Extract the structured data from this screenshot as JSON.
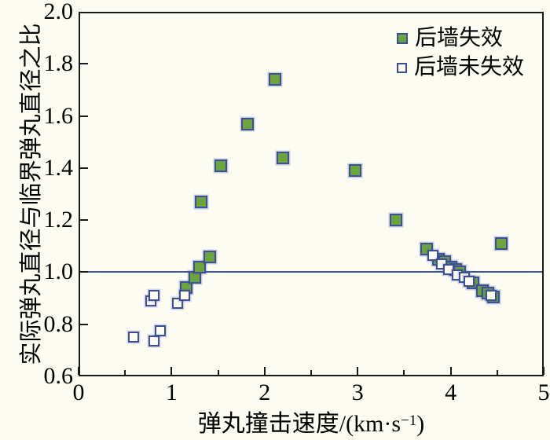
{
  "colors": {
    "background": "#FDFCF2",
    "frame": "#1A1A1A",
    "marker_green": "#6BA53B",
    "marker_border": "#3D4E9B",
    "reference_line": "#4053A3",
    "text": "#000000"
  },
  "chart_data": {
    "type": "scatter",
    "title": "",
    "xlabel_parts": {
      "prefix": "弹丸撞击速度/(km·s",
      "sup": "−1",
      "suffix": ")"
    },
    "ylabel": "实际弹丸直径与临界弹丸直径之比",
    "xlim": [
      0,
      5
    ],
    "ylim": [
      0.6,
      2.0
    ],
    "x_major_ticks": [
      0,
      1,
      2,
      3,
      4,
      5
    ],
    "x_tick_labels": [
      "0",
      "1",
      "2",
      "3",
      "4",
      "5"
    ],
    "x_minor_ticks": [
      0.5,
      1.5,
      2.5,
      3.5,
      4.5
    ],
    "y_major_ticks": [
      0.6,
      0.8,
      1.0,
      1.2,
      1.4,
      1.6,
      1.8,
      2.0
    ],
    "y_tick_labels": [
      "0.6",
      "0.8",
      "1.0",
      "1.2",
      "1.4",
      "1.6",
      "1.8",
      "2.0"
    ],
    "reference_line_y": 1.0,
    "grid": false,
    "legend_position": "top-right",
    "series": [
      {
        "name": "后墙失效",
        "marker": "filled-square",
        "fill": "#6BA53B",
        "border": "#3D4E9B",
        "points": [
          [
            1.16,
            0.94
          ],
          [
            1.25,
            0.98
          ],
          [
            1.3,
            1.02
          ],
          [
            1.32,
            1.27
          ],
          [
            1.41,
            1.06
          ],
          [
            1.53,
            1.41
          ],
          [
            1.82,
            1.57
          ],
          [
            2.11,
            1.74
          ],
          [
            2.2,
            1.44
          ],
          [
            2.97,
            1.39
          ],
          [
            3.41,
            1.2
          ],
          [
            3.74,
            1.09
          ],
          [
            3.87,
            1.05
          ],
          [
            3.94,
            1.04
          ],
          [
            4.0,
            1.02
          ],
          [
            4.05,
            1.01
          ],
          [
            4.1,
            1.0
          ],
          [
            4.24,
            0.96
          ],
          [
            4.34,
            0.93
          ],
          [
            4.4,
            0.92
          ],
          [
            4.46,
            0.905
          ],
          [
            4.54,
            1.11
          ]
        ]
      },
      {
        "name": "后墙未失效",
        "marker": "open-square",
        "fill": "none",
        "border": "#3D4E9B",
        "points": [
          [
            0.59,
            0.75
          ],
          [
            0.78,
            0.89
          ],
          [
            0.81,
            0.91
          ],
          [
            0.81,
            0.735
          ],
          [
            0.88,
            0.775
          ],
          [
            1.06,
            0.88
          ],
          [
            1.14,
            0.91
          ],
          [
            3.81,
            1.065
          ],
          [
            3.9,
            1.03
          ],
          [
            3.98,
            1.01
          ],
          [
            4.07,
            0.99
          ],
          [
            4.15,
            0.98
          ],
          [
            4.2,
            0.965
          ],
          [
            4.43,
            0.91
          ]
        ]
      }
    ]
  }
}
